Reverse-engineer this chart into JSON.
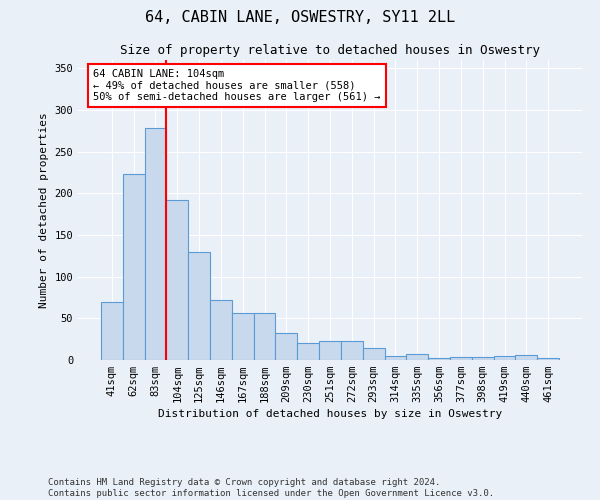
{
  "title": "64, CABIN LANE, OSWESTRY, SY11 2LL",
  "subtitle": "Size of property relative to detached houses in Oswestry",
  "xlabel": "Distribution of detached houses by size in Oswestry",
  "ylabel": "Number of detached properties",
  "categories": [
    "41sqm",
    "62sqm",
    "83sqm",
    "104sqm",
    "125sqm",
    "146sqm",
    "167sqm",
    "188sqm",
    "209sqm",
    "230sqm",
    "251sqm",
    "272sqm",
    "293sqm",
    "314sqm",
    "335sqm",
    "356sqm",
    "377sqm",
    "398sqm",
    "419sqm",
    "440sqm",
    "461sqm"
  ],
  "values": [
    70,
    223,
    278,
    192,
    130,
    72,
    57,
    57,
    32,
    20,
    23,
    23,
    14,
    5,
    7,
    3,
    4,
    4,
    5,
    6,
    2
  ],
  "bar_color": "#c8d9ed",
  "bar_edge_color": "#5b9bd5",
  "highlight_line_index": 3,
  "annotation_line1": "64 CABIN LANE: 104sqm",
  "annotation_line2": "← 49% of detached houses are smaller (558)",
  "annotation_line3": "50% of semi-detached houses are larger (561) →",
  "annotation_box_color": "white",
  "annotation_box_edge_color": "red",
  "highlight_line_color": "red",
  "ylim": [
    0,
    360
  ],
  "yticks": [
    0,
    50,
    100,
    150,
    200,
    250,
    300,
    350
  ],
  "footer": "Contains HM Land Registry data © Crown copyright and database right 2024.\nContains public sector information licensed under the Open Government Licence v3.0.",
  "background_color": "#eaf0f8",
  "plot_background_color": "#eaf0f8",
  "title_fontsize": 11,
  "subtitle_fontsize": 9,
  "xlabel_fontsize": 8,
  "ylabel_fontsize": 8,
  "tick_fontsize": 7.5,
  "annotation_fontsize": 7.5,
  "footer_fontsize": 6.5
}
